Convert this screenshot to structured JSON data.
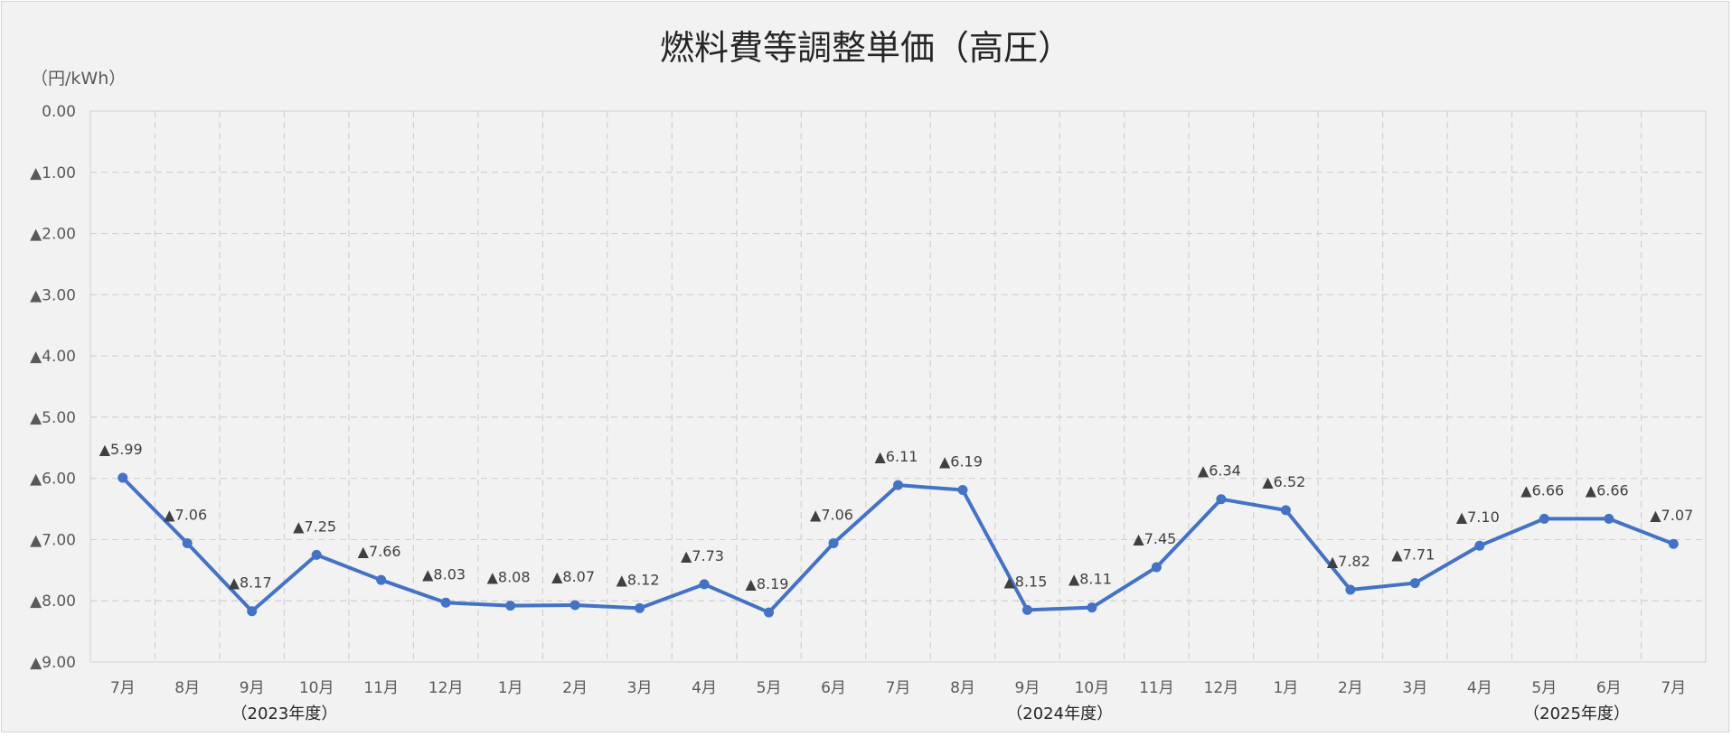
{
  "chart_data": {
    "type": "line",
    "title": "燃料費等調整単価（高圧）",
    "unit_label": "（円/kWh）",
    "ylim": [
      -9.0,
      0.0
    ],
    "y_ticks": [
      {
        "value": 0,
        "label": "0.00"
      },
      {
        "value": -1,
        "label": "▲1.00"
      },
      {
        "value": -2,
        "label": "▲2.00"
      },
      {
        "value": -3,
        "label": "▲3.00"
      },
      {
        "value": -4,
        "label": "▲4.00"
      },
      {
        "value": -5,
        "label": "▲5.00"
      },
      {
        "value": -6,
        "label": "▲6.00"
      },
      {
        "value": -7,
        "label": "▲7.00"
      },
      {
        "value": -8,
        "label": "▲8.00"
      },
      {
        "value": -9,
        "label": "▲9.00"
      }
    ],
    "categories": [
      "7月",
      "8月",
      "9月",
      "10月",
      "11月",
      "12月",
      "1月",
      "2月",
      "3月",
      "4月",
      "5月",
      "6月",
      "7月",
      "8月",
      "9月",
      "10月",
      "11月",
      "12月",
      "1月",
      "2月",
      "3月",
      "4月",
      "5月",
      "6月",
      "7月"
    ],
    "series": [
      {
        "color": "#4472c4",
        "values": [
          -5.99,
          -7.06,
          -8.17,
          -7.25,
          -7.66,
          -8.03,
          -8.08,
          -8.07,
          -8.12,
          -7.73,
          -8.19,
          -7.06,
          -6.11,
          -6.19,
          -8.15,
          -8.11,
          -7.45,
          -6.34,
          -6.52,
          -7.82,
          -7.71,
          -7.1,
          -6.66,
          -6.66,
          -7.07
        ],
        "labels": [
          "▲5.99",
          "▲7.06",
          "▲8.17",
          "▲7.25",
          "▲7.66",
          "▲8.03",
          "▲8.08",
          "▲8.07",
          "▲8.12",
          "▲7.73",
          "▲8.19",
          "▲7.06",
          "▲6.11",
          "▲6.19",
          "▲8.15",
          "▲8.11",
          "▲7.45",
          "▲6.34",
          "▲6.52",
          "▲7.82",
          "▲7.71",
          "▲7.10",
          "▲6.66",
          "▲6.66",
          "▲7.07"
        ]
      }
    ],
    "fiscal_year_labels": [
      {
        "label": "（2023年度）",
        "category_index": 2.5
      },
      {
        "label": "（2024年度）",
        "category_index": 14.5
      },
      {
        "label": "（2025年度）",
        "category_index": 22.5
      }
    ],
    "grid": true
  }
}
